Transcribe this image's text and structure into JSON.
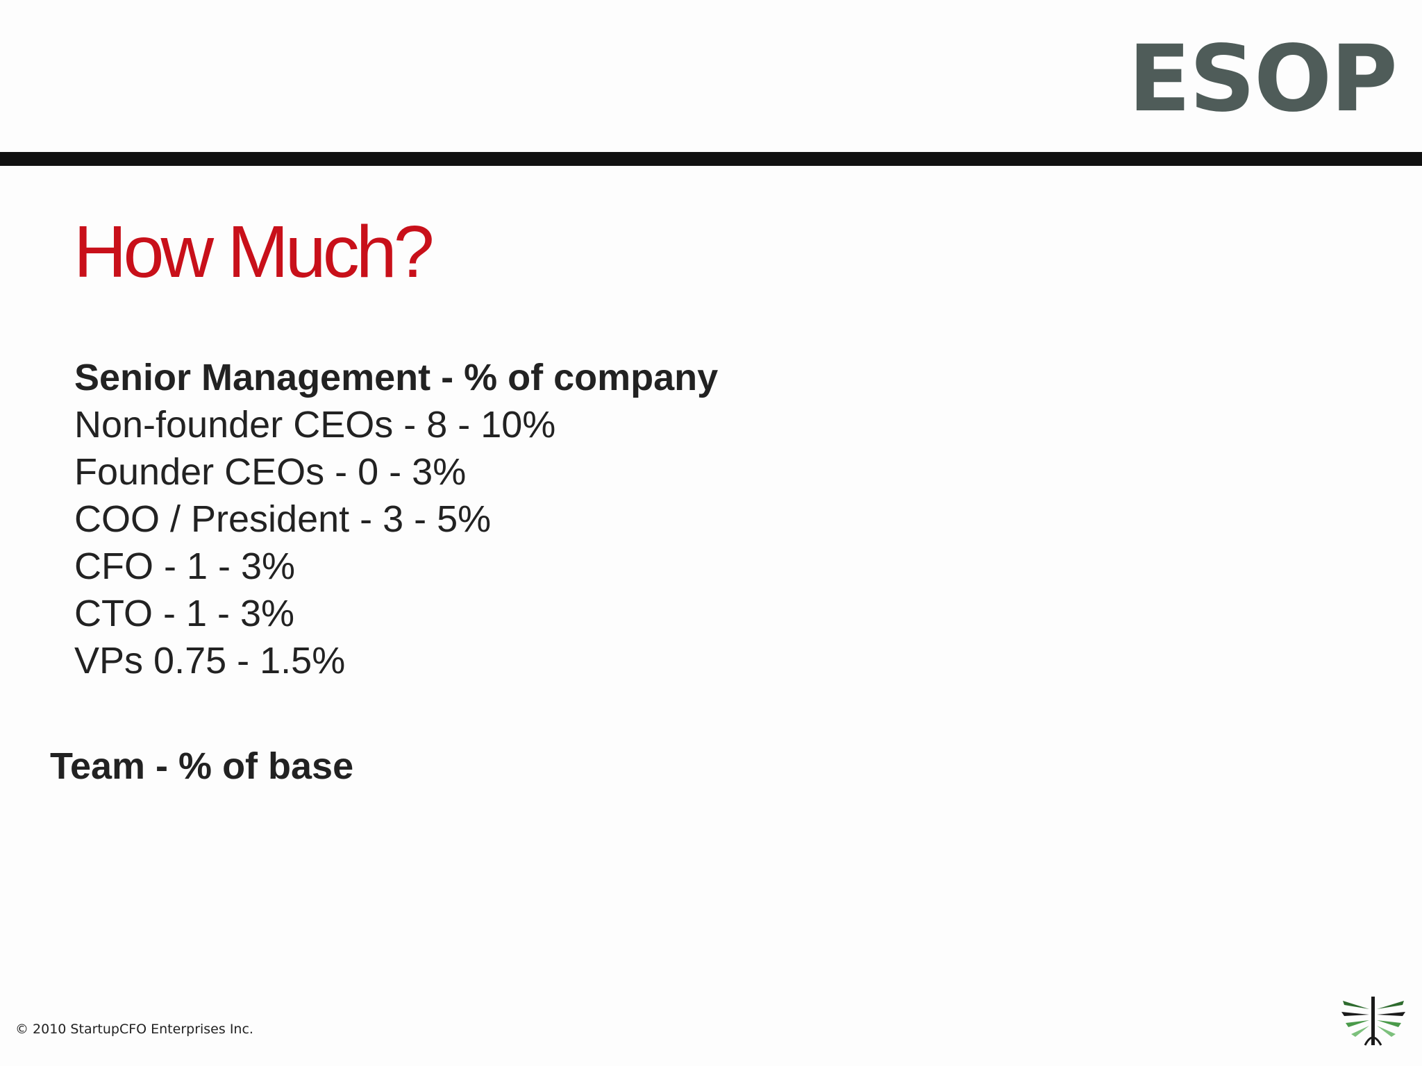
{
  "header": {
    "title": "ESOP"
  },
  "slide": {
    "heading": "How Much?",
    "senior_management": {
      "heading": "Senior Management - % of company",
      "items": [
        "Non-founder CEOs - 8 - 10%",
        "Founder CEOs - 0 - 3%",
        "COO / President - 3 - 5%",
        "CFO - 1 - 3%",
        "CTO - 1 - 3%",
        "VPs 0.75 - 1.5%"
      ]
    },
    "team": {
      "heading": "Team - % of base"
    }
  },
  "footer": {
    "copyright": "© 2010 StartupCFO Enterprises Inc.",
    "logo_icon": "startupcfo-logo-icon"
  },
  "colors": {
    "header_title": "#4f5c59",
    "heading_red": "#c8101a",
    "divider": "#111111",
    "body_text": "#222222",
    "logo_green": "#2e6b2e"
  }
}
